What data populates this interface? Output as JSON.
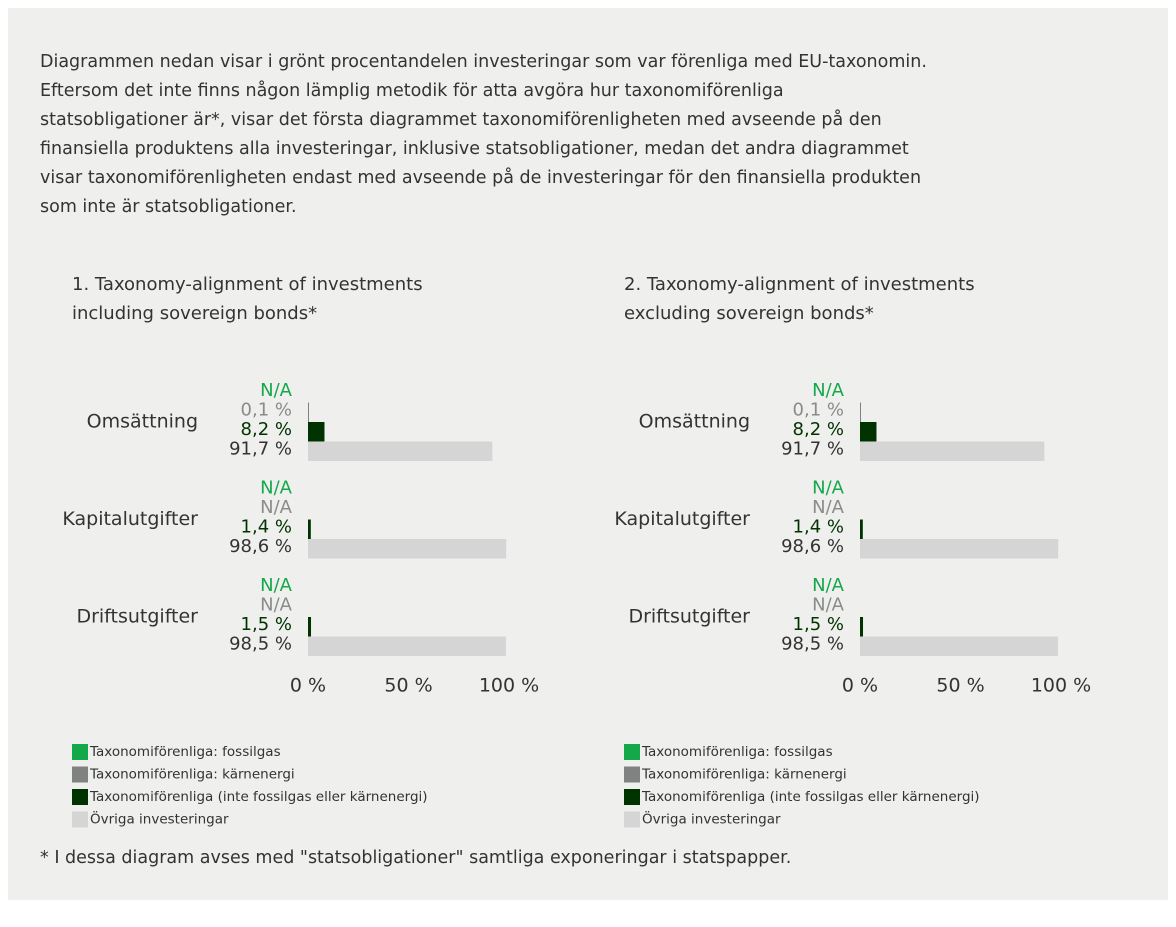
{
  "intro": "Diagrammen nedan visar i grönt procentandelen investeringar som var förenliga med EU-taxonomin.\nEftersom det inte finns någon lämplig metodik för atta avgöra hur taxonomiförenliga\nstatsobligationer är*, visar det första diagrammet taxonomiförenligheten med avseende på den\nfinansiella produktens alla investeringar, inklusive statsobligationer, medan det andra diagrammet\nvisar taxonomiförenligheten endast med avseende på de investeringar för den finansiella produkten\nsom inte är statsobligationer.",
  "chart_data": [
    {
      "type": "bar",
      "orientation": "horizontal",
      "title": "1. Taxonomy-alignment of investments\nincluding sovereign bonds*",
      "categories": [
        "Omsättning",
        "Kapitalutgifter",
        "Driftsutgifter"
      ],
      "series": [
        {
          "name": "Taxonomiförenliga: fossilgas",
          "color": "#14a84a",
          "values": [
            null,
            null,
            null
          ],
          "value_labels": [
            "N/A",
            "N/A",
            "N/A"
          ]
        },
        {
          "name": "Taxonomiförenliga: kärnenergi",
          "color": "#808282",
          "values": [
            0.1,
            null,
            null
          ],
          "value_labels": [
            "0,1 %",
            "N/A",
            "N/A"
          ]
        },
        {
          "name": "Taxonomiförenliga (inte fossilgas eller kärnenergi)",
          "color": "#013300",
          "values": [
            8.2,
            1.4,
            1.5
          ],
          "value_labels": [
            "8,2 %",
            "1,4 %",
            "1,5 %"
          ]
        },
        {
          "name": "Övriga investeringar",
          "color": "#d5d5d5",
          "values": [
            91.7,
            98.6,
            98.5
          ],
          "value_labels": [
            "91,7 %",
            "98,6 %",
            "98,5 %"
          ]
        }
      ],
      "xlim": [
        0,
        100
      ],
      "xticks": [
        {
          "value": 0,
          "label": "0 %"
        },
        {
          "value": 50,
          "label": "50 %"
        },
        {
          "value": 100,
          "label": "100 %"
        }
      ]
    },
    {
      "type": "bar",
      "orientation": "horizontal",
      "title": "2. Taxonomy-alignment of investments\nexcluding sovereign bonds*",
      "categories": [
        "Omsättning",
        "Kapitalutgifter",
        "Driftsutgifter"
      ],
      "series": [
        {
          "name": "Taxonomiförenliga: fossilgas",
          "color": "#14a84a",
          "values": [
            null,
            null,
            null
          ],
          "value_labels": [
            "N/A",
            "N/A",
            "N/A"
          ]
        },
        {
          "name": "Taxonomiförenliga: kärnenergi",
          "color": "#808282",
          "values": [
            0.1,
            null,
            null
          ],
          "value_labels": [
            "0,1 %",
            "N/A",
            "N/A"
          ]
        },
        {
          "name": "Taxonomiförenliga (inte fossilgas eller kärnenergi)",
          "color": "#013300",
          "values": [
            8.2,
            1.4,
            1.5
          ],
          "value_labels": [
            "8,2 %",
            "1,4 %",
            "1,5 %"
          ]
        },
        {
          "name": "Övriga investeringar",
          "color": "#d5d5d5",
          "values": [
            91.7,
            98.6,
            98.5
          ],
          "value_labels": [
            "91,7 %",
            "98,6 %",
            "98,5 %"
          ]
        }
      ],
      "xlim": [
        0,
        100
      ],
      "xticks": [
        {
          "value": 0,
          "label": "0 %"
        },
        {
          "value": 50,
          "label": "50 %"
        },
        {
          "value": 100,
          "label": "100 %"
        }
      ]
    }
  ],
  "footnote": "* I dessa diagram avses med \"statsobligationer\" samtliga exponeringar i statspapper."
}
